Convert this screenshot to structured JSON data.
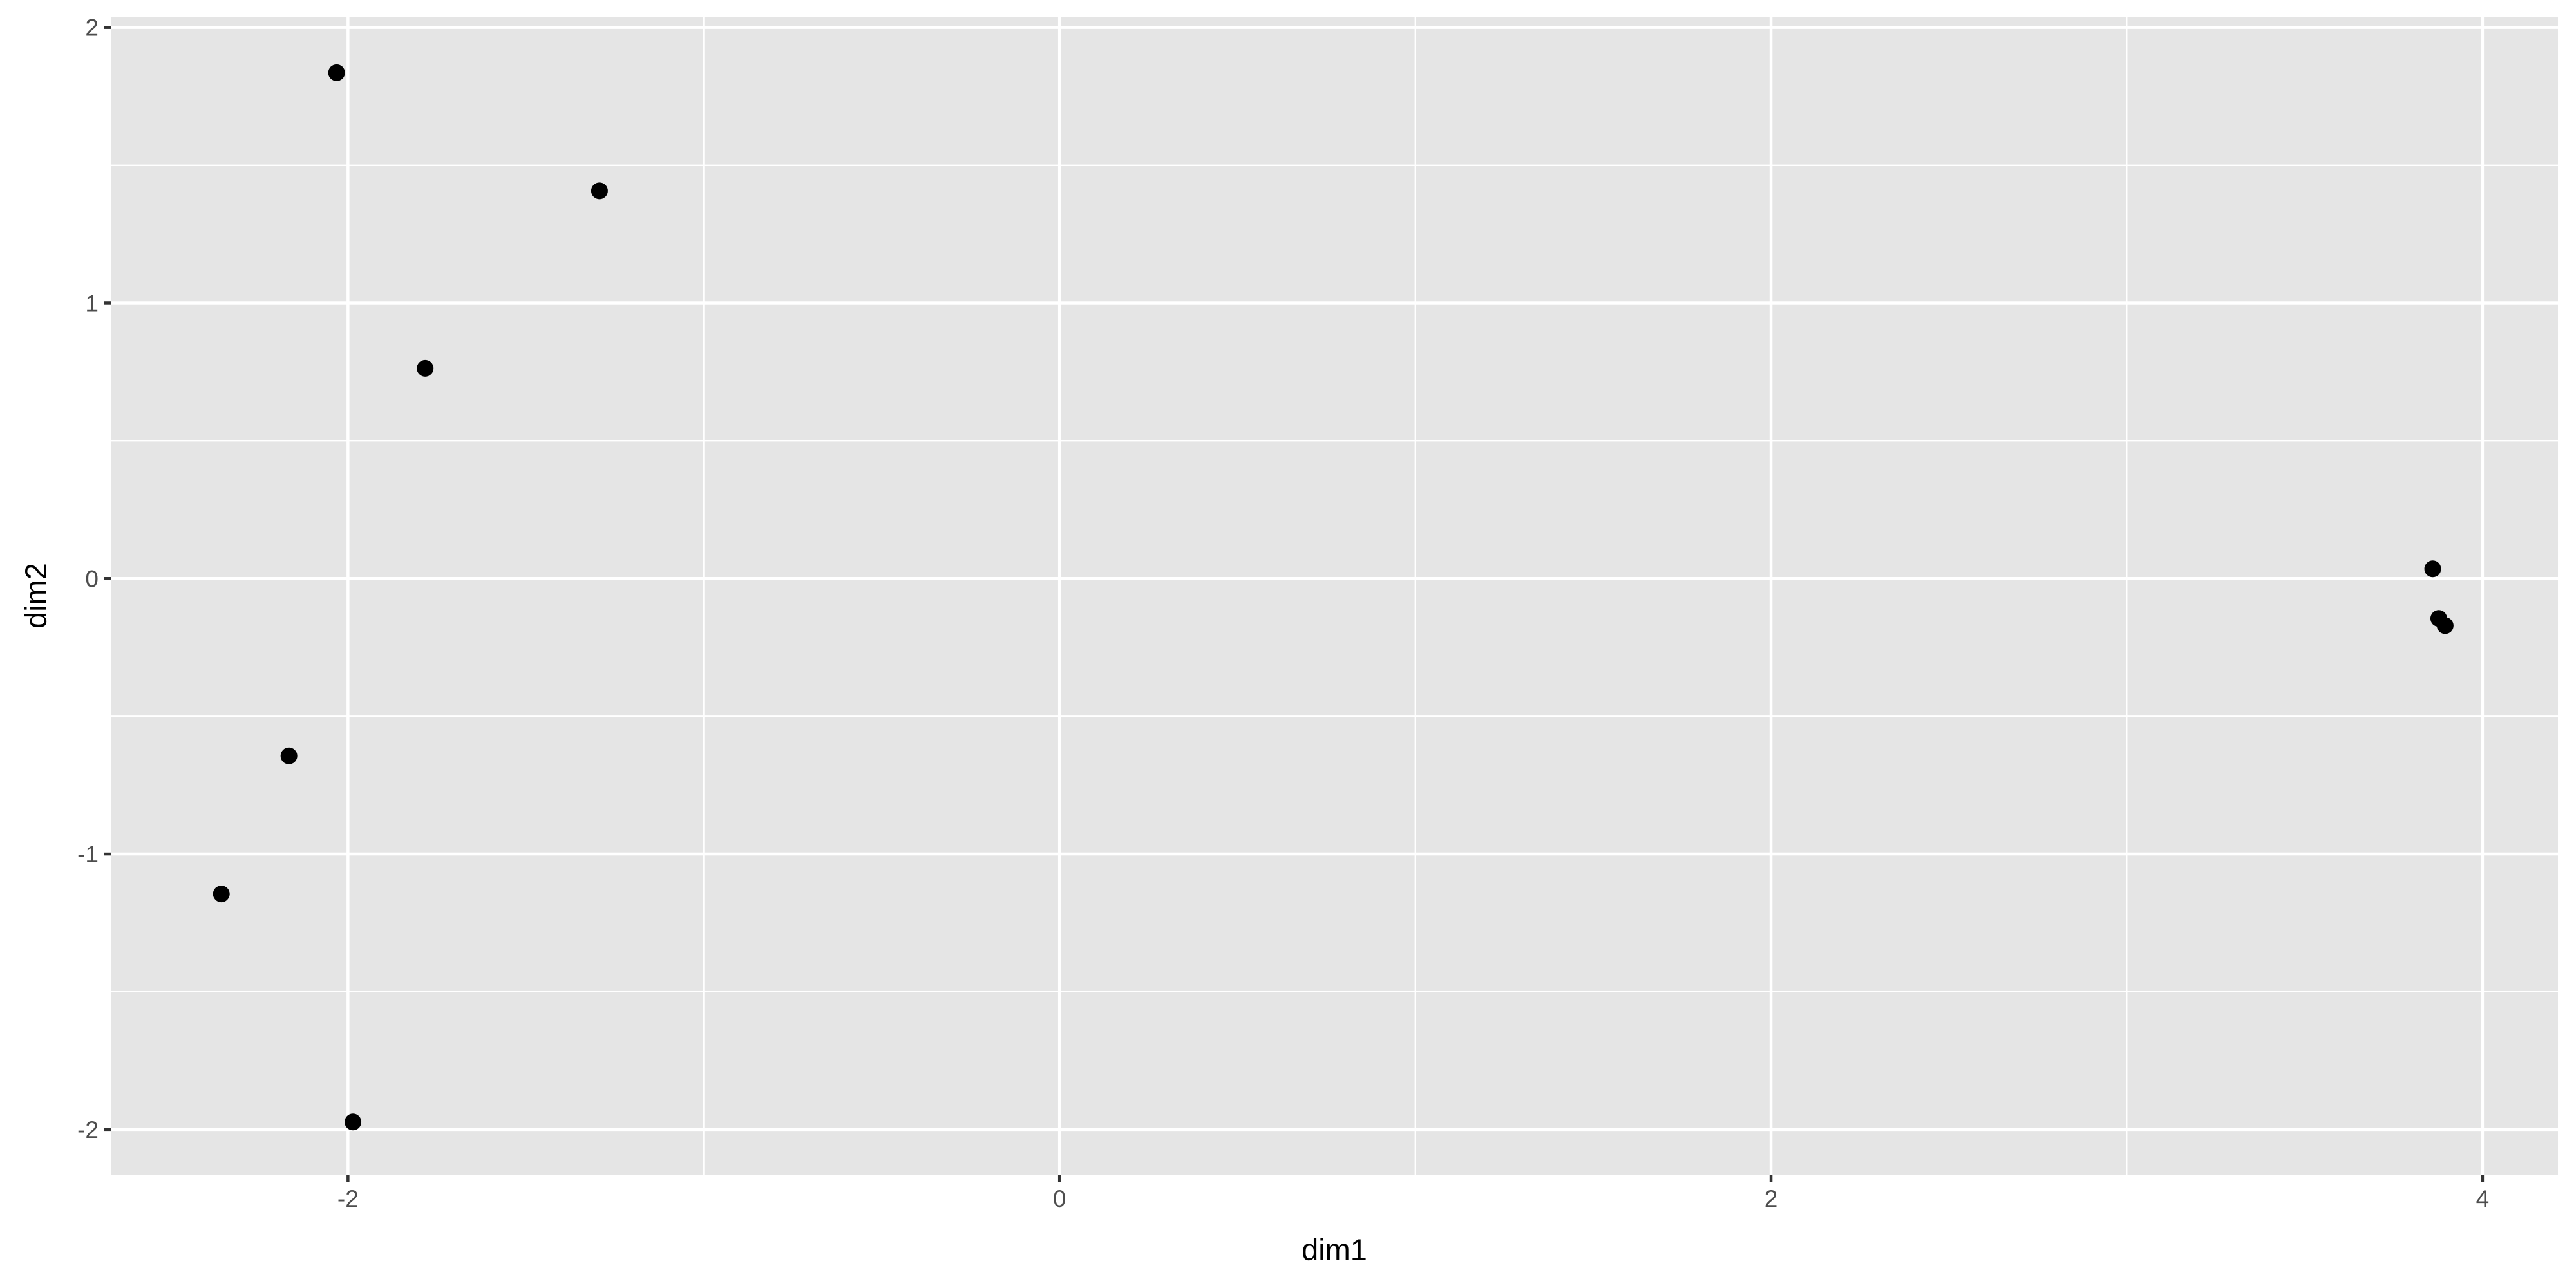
{
  "chart_data": {
    "type": "scatter",
    "title": "",
    "xlabel": "dim1",
    "ylabel": "dim2",
    "xlim": [
      -2.665,
      4.212
    ],
    "ylim": [
      -2.164,
      2.039
    ],
    "xticks": [
      -2,
      0,
      2,
      4
    ],
    "xtick_labels": [
      "-2",
      "0",
      "2",
      "4"
    ],
    "yticks": [
      -2,
      -1,
      0,
      1,
      2
    ],
    "ytick_labels": [
      "-2",
      "-1",
      "0",
      "1",
      "2"
    ],
    "grid": true,
    "colors": {
      "panel": "#e5e5e5",
      "grid": "#ffffff",
      "point": "#000000"
    },
    "points": [
      {
        "x": -2.032,
        "y": 1.836
      },
      {
        "x": -1.293,
        "y": 1.407
      },
      {
        "x": -1.783,
        "y": 0.763
      },
      {
        "x": -2.166,
        "y": -0.644
      },
      {
        "x": -2.356,
        "y": -1.145
      },
      {
        "x": -1.986,
        "y": -1.973
      },
      {
        "x": 3.86,
        "y": 0.035
      },
      {
        "x": 3.877,
        "y": -0.145
      },
      {
        "x": 3.895,
        "y": -0.171
      }
    ]
  }
}
